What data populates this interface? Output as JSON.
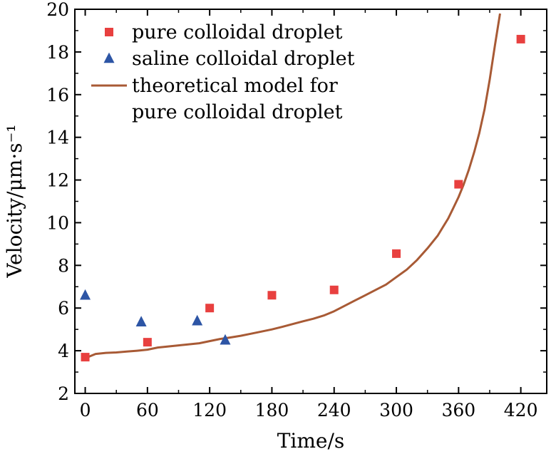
{
  "chart_data": {
    "type": "scatter",
    "xlabel": "Time/s",
    "ylabel": "Velocity/μm·s⁻¹",
    "xlim": [
      -10,
      445
    ],
    "ylim": [
      2,
      20
    ],
    "xticks": [
      "0",
      "60",
      "120",
      "180",
      "240",
      "300",
      "360",
      "420"
    ],
    "yticks": [
      "2",
      "4",
      "6",
      "8",
      "10",
      "12",
      "14",
      "16",
      "18",
      "20"
    ],
    "legend_position": "top-left",
    "series": [
      {
        "name": "pure colloidal droplet",
        "kind": "scatter",
        "marker": "square",
        "color": "#e8403f",
        "x": [
          0,
          60,
          120,
          180,
          240,
          300,
          360,
          420
        ],
        "y": [
          3.7,
          4.4,
          6.0,
          6.6,
          6.85,
          8.55,
          11.8,
          18.6
        ]
      },
      {
        "name": "saline colloidal droplet",
        "kind": "scatter",
        "marker": "triangle",
        "color": "#2d55a5",
        "x": [
          0,
          54,
          108,
          135
        ],
        "y": [
          6.6,
          5.35,
          5.4,
          4.5
        ]
      },
      {
        "name": "theoretical model for",
        "name_line2": "pure colloidal droplet",
        "kind": "line",
        "color": "#a85a35",
        "x": [
          0,
          10,
          20,
          30,
          40,
          50,
          60,
          70,
          80,
          90,
          100,
          110,
          120,
          130,
          140,
          150,
          160,
          170,
          180,
          190,
          200,
          210,
          220,
          230,
          240,
          250,
          260,
          270,
          280,
          290,
          300,
          310,
          320,
          330,
          340,
          345,
          350,
          355,
          360,
          365,
          370,
          375,
          380,
          385,
          390,
          395,
          398,
          400
        ],
        "y": [
          3.65,
          3.85,
          3.9,
          3.92,
          3.96,
          4.0,
          4.05,
          4.15,
          4.2,
          4.25,
          4.3,
          4.35,
          4.45,
          4.55,
          4.62,
          4.7,
          4.8,
          4.9,
          5.0,
          5.12,
          5.25,
          5.38,
          5.5,
          5.65,
          5.85,
          6.1,
          6.35,
          6.6,
          6.85,
          7.1,
          7.45,
          7.8,
          8.25,
          8.8,
          9.4,
          9.8,
          10.2,
          10.7,
          11.2,
          11.8,
          12.5,
          13.3,
          14.2,
          15.3,
          16.7,
          18.3,
          19.2,
          19.8
        ]
      }
    ]
  }
}
